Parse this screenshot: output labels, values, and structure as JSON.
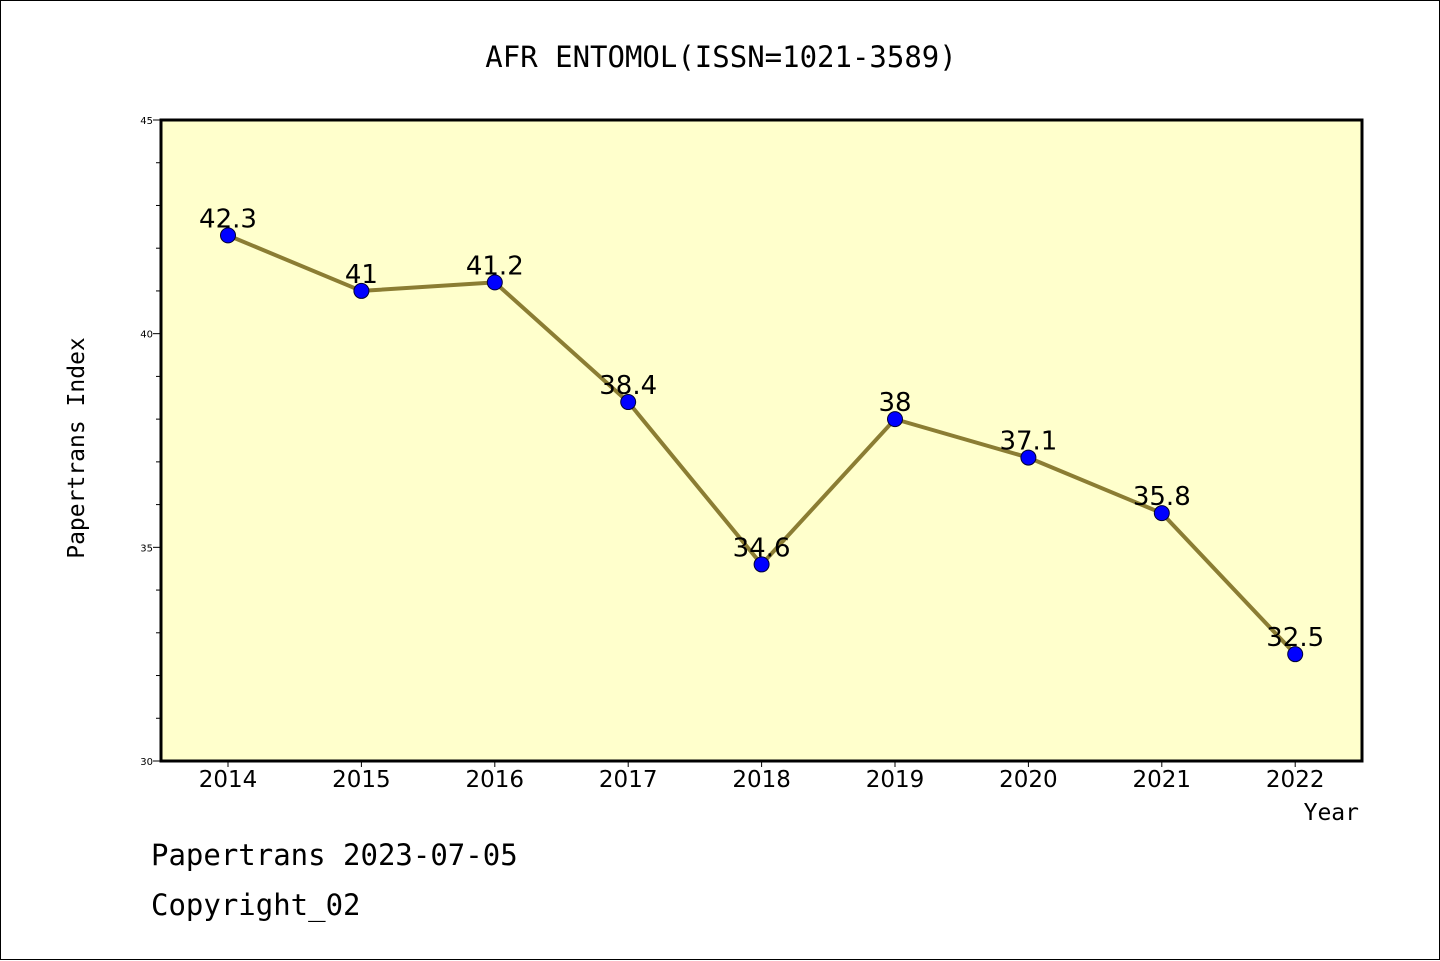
{
  "chart_data": {
    "type": "line",
    "title": "AFR ENTOMOL(ISSN=1021-3589)",
    "xlabel": "Year",
    "ylabel": "Papertrans Index",
    "categories": [
      "2014",
      "2015",
      "2016",
      "2017",
      "2018",
      "2019",
      "2020",
      "2021",
      "2022"
    ],
    "values": [
      42.3,
      41,
      41.2,
      38.4,
      34.6,
      38,
      37.1,
      35.8,
      32.5
    ],
    "data_labels": [
      "42.3",
      "41",
      "41.2",
      "38.4",
      "34.6",
      "38",
      "37.1",
      "35.8",
      "32.5"
    ],
    "ylim": [
      30,
      45
    ],
    "yticks": [
      "30",
      "35",
      "40",
      "45"
    ],
    "grid": false,
    "legend": "none",
    "colors": {
      "plot_background": "#ffffcc",
      "line": "#8b7d33",
      "marker": "#0000ff",
      "axis": "#000000"
    }
  },
  "footer": {
    "line1": "Papertrans 2023-07-05",
    "line2": "Copyright_02"
  }
}
